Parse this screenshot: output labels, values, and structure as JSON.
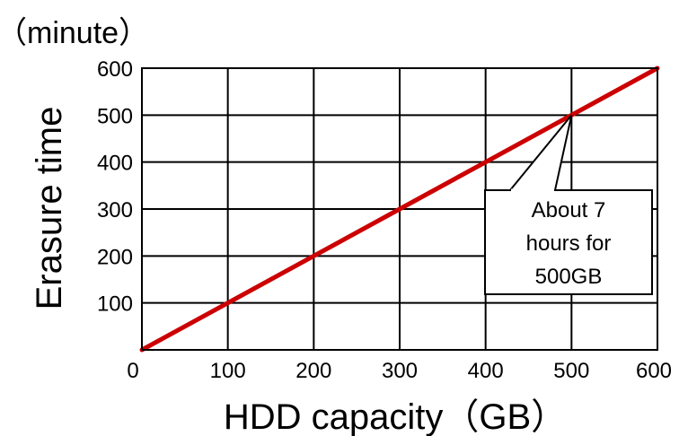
{
  "chart_data": {
    "type": "line",
    "title": "",
    "xlabel": "HDD capacity（GB）",
    "ylabel": "Erasure time",
    "y_unit_label": "（minute）",
    "xlim": [
      0,
      600
    ],
    "ylim": [
      0,
      600
    ],
    "x_ticks": [
      0,
      100,
      200,
      300,
      400,
      500,
      600
    ],
    "y_ticks": [
      100,
      200,
      300,
      400,
      500,
      600
    ],
    "grid": true,
    "series": [
      {
        "x": [
          0,
          100,
          200,
          300,
          400,
          500,
          600
        ],
        "y": [
          0,
          100,
          200,
          300,
          400,
          500,
          600
        ],
        "color": "#cc0000"
      }
    ],
    "annotations": [
      {
        "lines": [
          "About 7",
          "hours for",
          "500GB"
        ],
        "points_to": {
          "x": 500,
          "y": 500
        }
      }
    ]
  }
}
